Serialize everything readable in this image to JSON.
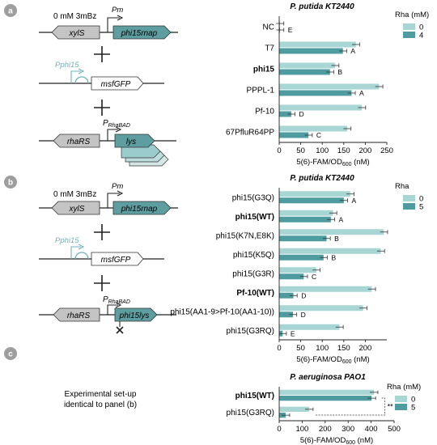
{
  "panel_letters": [
    "a",
    "b",
    "c"
  ],
  "panel_c_text": [
    "Experimental set-up",
    "identical to panel (b)"
  ],
  "colors": {
    "light": "#a7d6d4",
    "dark": "#4e9ba0",
    "panel_badge": "#9e9e9e",
    "gene_dark": "#5f9ea0",
    "gene_gray": "#c4c4c4",
    "promoter_light": "#6fb3bb"
  },
  "constructs_a": {
    "row1": {
      "inducer": "0 mM 3mBz",
      "promoter": "Pm",
      "gene_left": "xylS",
      "gene_right": "phi15rnap"
    },
    "row2": {
      "promoter": "Pphi15",
      "gene": "msfGFP"
    },
    "row3": {
      "promoter": "PRhaBAD",
      "promoter_main": "P",
      "promoter_sub": "RhaBAD",
      "gene_left": "rhaRS",
      "gene_right": "lys"
    }
  },
  "constructs_b": {
    "row1": {
      "inducer": "0 mM 3mBz",
      "promoter": "Pm",
      "gene_left": "xylS",
      "gene_right": "phi15rnap"
    },
    "row2": {
      "promoter": "Pphi15",
      "gene": "msfGFP"
    },
    "row3": {
      "promoter": "PRhaBAD",
      "promoter_main": "P",
      "promoter_sub": "RhaBAD",
      "gene_left": "rhaRS",
      "gene_right": "phi15lys"
    }
  },
  "chart_data": [
    {
      "type": "bar",
      "orientation": "horizontal",
      "title": "P. putida KT2440",
      "xlabel": "5(6)-FAM/OD600 (nM)",
      "xlim": [
        0,
        250
      ],
      "xticks": [
        0,
        50,
        100,
        150,
        200,
        250
      ],
      "legend_title": "Rha (mM)",
      "legend_position": "top-right",
      "categories": [
        "NC",
        "T7",
        "phi15",
        "PPPL-1",
        "Pf-10",
        "67PfluR64PP"
      ],
      "bold": [
        false,
        false,
        true,
        false,
        false,
        false
      ],
      "series": [
        {
          "name": "0",
          "values": [
            2,
            178,
            130,
            232,
            192,
            158
          ]
        },
        {
          "name": "4",
          "values": [
            2,
            148,
            118,
            168,
            28,
            68
          ]
        }
      ],
      "group_labels": [
        "E",
        "A",
        "B",
        "A",
        "D",
        "C"
      ]
    },
    {
      "type": "bar",
      "orientation": "horizontal",
      "title": "P. putida KT2440",
      "xlabel": "5(6)-FAM/OD600 (nM)",
      "xlim": [
        0,
        250
      ],
      "xticks": [
        0,
        50,
        100,
        150,
        200
      ],
      "legend_title": "Rha",
      "legend_position": "top-right",
      "categories": [
        "phi15(G3Q)",
        "phi15(WT)",
        "phi15(K7N,E8K)",
        "phi15(K5Q)",
        "phi15(G3R)",
        "Pf-10(WT)",
        "phi15(AA1-9>Pf-10(AA1-10))",
        "phi15(G3RQ)"
      ],
      "bold": [
        false,
        true,
        false,
        false,
        false,
        true,
        false,
        false
      ],
      "series": [
        {
          "name": "0",
          "values": [
            165,
            125,
            243,
            236,
            86,
            215,
            195,
            140
          ]
        },
        {
          "name": "5",
          "values": [
            150,
            120,
            110,
            103,
            57,
            33,
            32,
            8
          ]
        }
      ],
      "group_labels": [
        "A",
        "A",
        "B",
        "B",
        "C",
        "D",
        "D",
        "E"
      ]
    },
    {
      "type": "bar",
      "orientation": "horizontal",
      "title": "P. aeruginosa PAO1",
      "xlabel": "5(6)-FAM/OD600 (nM)",
      "xlim": [
        0,
        500
      ],
      "xticks": [
        0,
        100,
        200,
        300,
        400,
        500
      ],
      "legend_title": "Rha (mM)",
      "legend_position": "top-right",
      "categories": [
        "phi15(WT)",
        "phi15(G3RQ)"
      ],
      "bold": [
        true,
        false
      ],
      "series": [
        {
          "name": "0",
          "values": [
            412,
            130
          ]
        },
        {
          "name": "5",
          "values": [
            402,
            28
          ]
        }
      ],
      "annotation": "**"
    }
  ]
}
